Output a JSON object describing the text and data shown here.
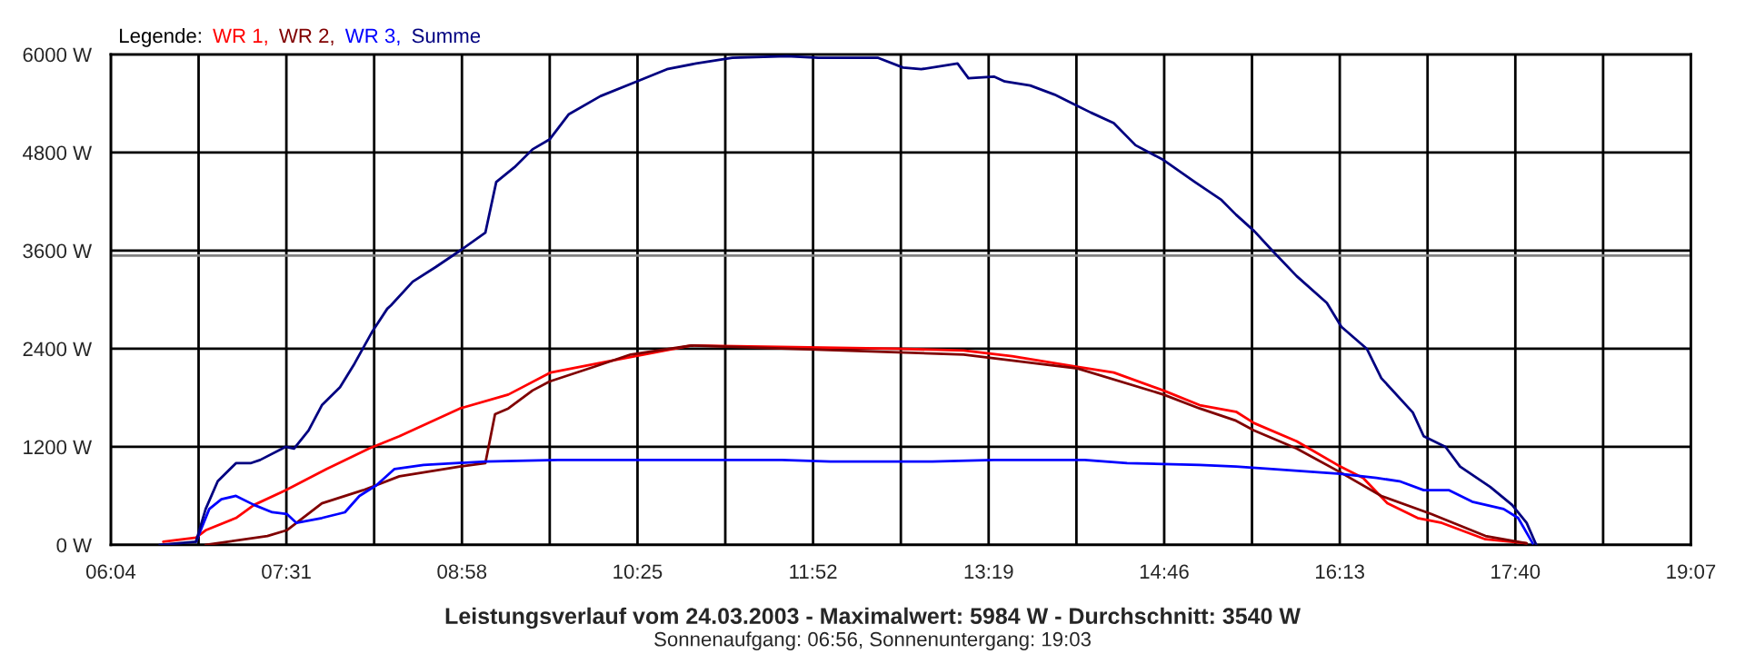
{
  "chart_data": {
    "type": "line",
    "title": "Leistungsverlauf vom 24.03.2003 - Maximalwert: 5984 W - Durchschnitt: 3540 W",
    "subtitle": "Sonnenaufgang: 06:56, Sonnenuntergang: 19:03",
    "legend_title": "Legende:",
    "legend": "top left",
    "grid": true,
    "marker": "none",
    "line_style": "solid",
    "xlim": [
      6.0667,
      19.1167
    ],
    "ylim": [
      0,
      6000
    ],
    "xticks": [
      {
        "value": 6.0667,
        "label": "06:04"
      },
      {
        "value": 6.7917,
        "label": null
      },
      {
        "value": 7.5167,
        "label": "07:31"
      },
      {
        "value": 8.2417,
        "label": null
      },
      {
        "value": 8.9667,
        "label": "08:58"
      },
      {
        "value": 9.6917,
        "label": null
      },
      {
        "value": 10.4167,
        "label": "10:25"
      },
      {
        "value": 11.1417,
        "label": null
      },
      {
        "value": 11.8667,
        "label": "11:52"
      },
      {
        "value": 12.5917,
        "label": null
      },
      {
        "value": 13.3167,
        "label": "13:19"
      },
      {
        "value": 14.0417,
        "label": null
      },
      {
        "value": 14.7667,
        "label": "14:46"
      },
      {
        "value": 15.4917,
        "label": null
      },
      {
        "value": 16.2167,
        "label": "16:13"
      },
      {
        "value": 16.9417,
        "label": null
      },
      {
        "value": 17.6667,
        "label": "17:40"
      },
      {
        "value": 18.3917,
        "label": null
      },
      {
        "value": 19.1167,
        "label": "19:07"
      }
    ],
    "yticks": [
      {
        "value": 0,
        "label": "0 W"
      },
      {
        "value": 1200,
        "label": "1200 W"
      },
      {
        "value": 2400,
        "label": "2400 W"
      },
      {
        "value": 3600,
        "label": "3600 W"
      },
      {
        "value": 4800,
        "label": "4800 W"
      },
      {
        "value": 6000,
        "label": "6000 W"
      }
    ],
    "ref_lines": [
      {
        "axis": "y",
        "value": 3540,
        "color": "#808080"
      }
    ],
    "series": [
      {
        "name": "WR 1,",
        "color": "#ff0000",
        "x": [
          6.5,
          6.77,
          6.85,
          7.1,
          7.25,
          7.51,
          7.85,
          8.2,
          8.45,
          8.95,
          9.35,
          9.7,
          10.26,
          10.86,
          12.55,
          13.11,
          13.51,
          14.05,
          14.35,
          14.76,
          15.06,
          15.36,
          15.51,
          15.86,
          16.22,
          16.41,
          16.61,
          16.86,
          17.06,
          17.42,
          17.76
        ],
        "values": [
          40,
          90,
          180,
          330,
          490,
          670,
          930,
          1180,
          1330,
          1670,
          1840,
          2110,
          2270,
          2440,
          2400,
          2380,
          2310,
          2180,
          2110,
          1890,
          1710,
          1630,
          1490,
          1270,
          960,
          820,
          510,
          330,
          270,
          70,
          20
        ]
      },
      {
        "name": "WR 2,",
        "color": "#800000",
        "x": [
          6.85,
          7.36,
          7.52,
          7.81,
          8.15,
          8.45,
          8.95,
          9.16,
          9.24,
          9.35,
          9.55,
          9.69,
          10.06,
          10.36,
          10.86,
          13.11,
          14.05,
          14.76,
          15.06,
          15.36,
          15.51,
          15.86,
          16.22,
          16.56,
          16.97,
          17.42,
          17.76
        ],
        "values": [
          0,
          110,
          180,
          510,
          670,
          840,
          960,
          1000,
          1600,
          1670,
          1890,
          2000,
          2180,
          2330,
          2440,
          2330,
          2160,
          1840,
          1670,
          1520,
          1400,
          1180,
          890,
          600,
          380,
          110,
          20
        ]
      },
      {
        "name": "WR 3,",
        "color": "#0000ff",
        "x": [
          6.77,
          6.88,
          6.98,
          7.1,
          7.25,
          7.4,
          7.52,
          7.6,
          7.81,
          8.0,
          8.12,
          8.26,
          8.41,
          8.65,
          9.16,
          9.76,
          10.86,
          11.61,
          12.01,
          12.85,
          13.36,
          14.11,
          14.46,
          15.06,
          15.36,
          15.66,
          16.22,
          16.52,
          16.71,
          16.91,
          17.12,
          17.31,
          17.57,
          17.69,
          17.81
        ],
        "values": [
          40,
          440,
          560,
          600,
          490,
          400,
          380,
          270,
          330,
          400,
          600,
          730,
          930,
          980,
          1020,
          1040,
          1040,
          1040,
          1020,
          1020,
          1040,
          1040,
          1000,
          980,
          960,
          930,
          870,
          820,
          780,
          670,
          670,
          530,
          440,
          330,
          20
        ]
      },
      {
        "name": "Summe",
        "color": "#000080",
        "x": [
          6.47,
          6.77,
          6.85,
          6.95,
          7.1,
          7.22,
          7.3,
          7.51,
          7.58,
          7.7,
          7.81,
          7.96,
          8.08,
          8.23,
          8.35,
          8.38,
          8.56,
          8.75,
          8.95,
          9.16,
          9.25,
          9.4,
          9.55,
          9.69,
          9.85,
          10.11,
          10.41,
          10.66,
          10.9,
          11.2,
          11.65,
          11.91,
          12.4,
          12.61,
          12.76,
          13.06,
          13.15,
          13.36,
          13.45,
          13.66,
          13.86,
          14.01,
          14.16,
          14.35,
          14.53,
          14.76,
          15.02,
          15.24,
          15.36,
          15.51,
          15.66,
          15.86,
          16.11,
          16.23,
          16.44,
          16.56,
          16.82,
          16.91,
          17.09,
          17.21,
          17.46,
          17.64,
          17.76,
          17.84
        ],
        "values": [
          0,
          40,
          440,
          780,
          1000,
          1000,
          1040,
          1200,
          1180,
          1400,
          1710,
          1930,
          2220,
          2620,
          2890,
          2930,
          3220,
          3400,
          3600,
          3820,
          4440,
          4620,
          4840,
          4960,
          5270,
          5490,
          5670,
          5820,
          5890,
          5960,
          5980,
          5960,
          5960,
          5840,
          5820,
          5890,
          5710,
          5730,
          5670,
          5620,
          5510,
          5400,
          5290,
          5160,
          4890,
          4710,
          4440,
          4220,
          4040,
          3840,
          3600,
          3290,
          2960,
          2670,
          2400,
          2040,
          1620,
          1330,
          1200,
          960,
          710,
          490,
          270,
          0
        ]
      }
    ]
  }
}
